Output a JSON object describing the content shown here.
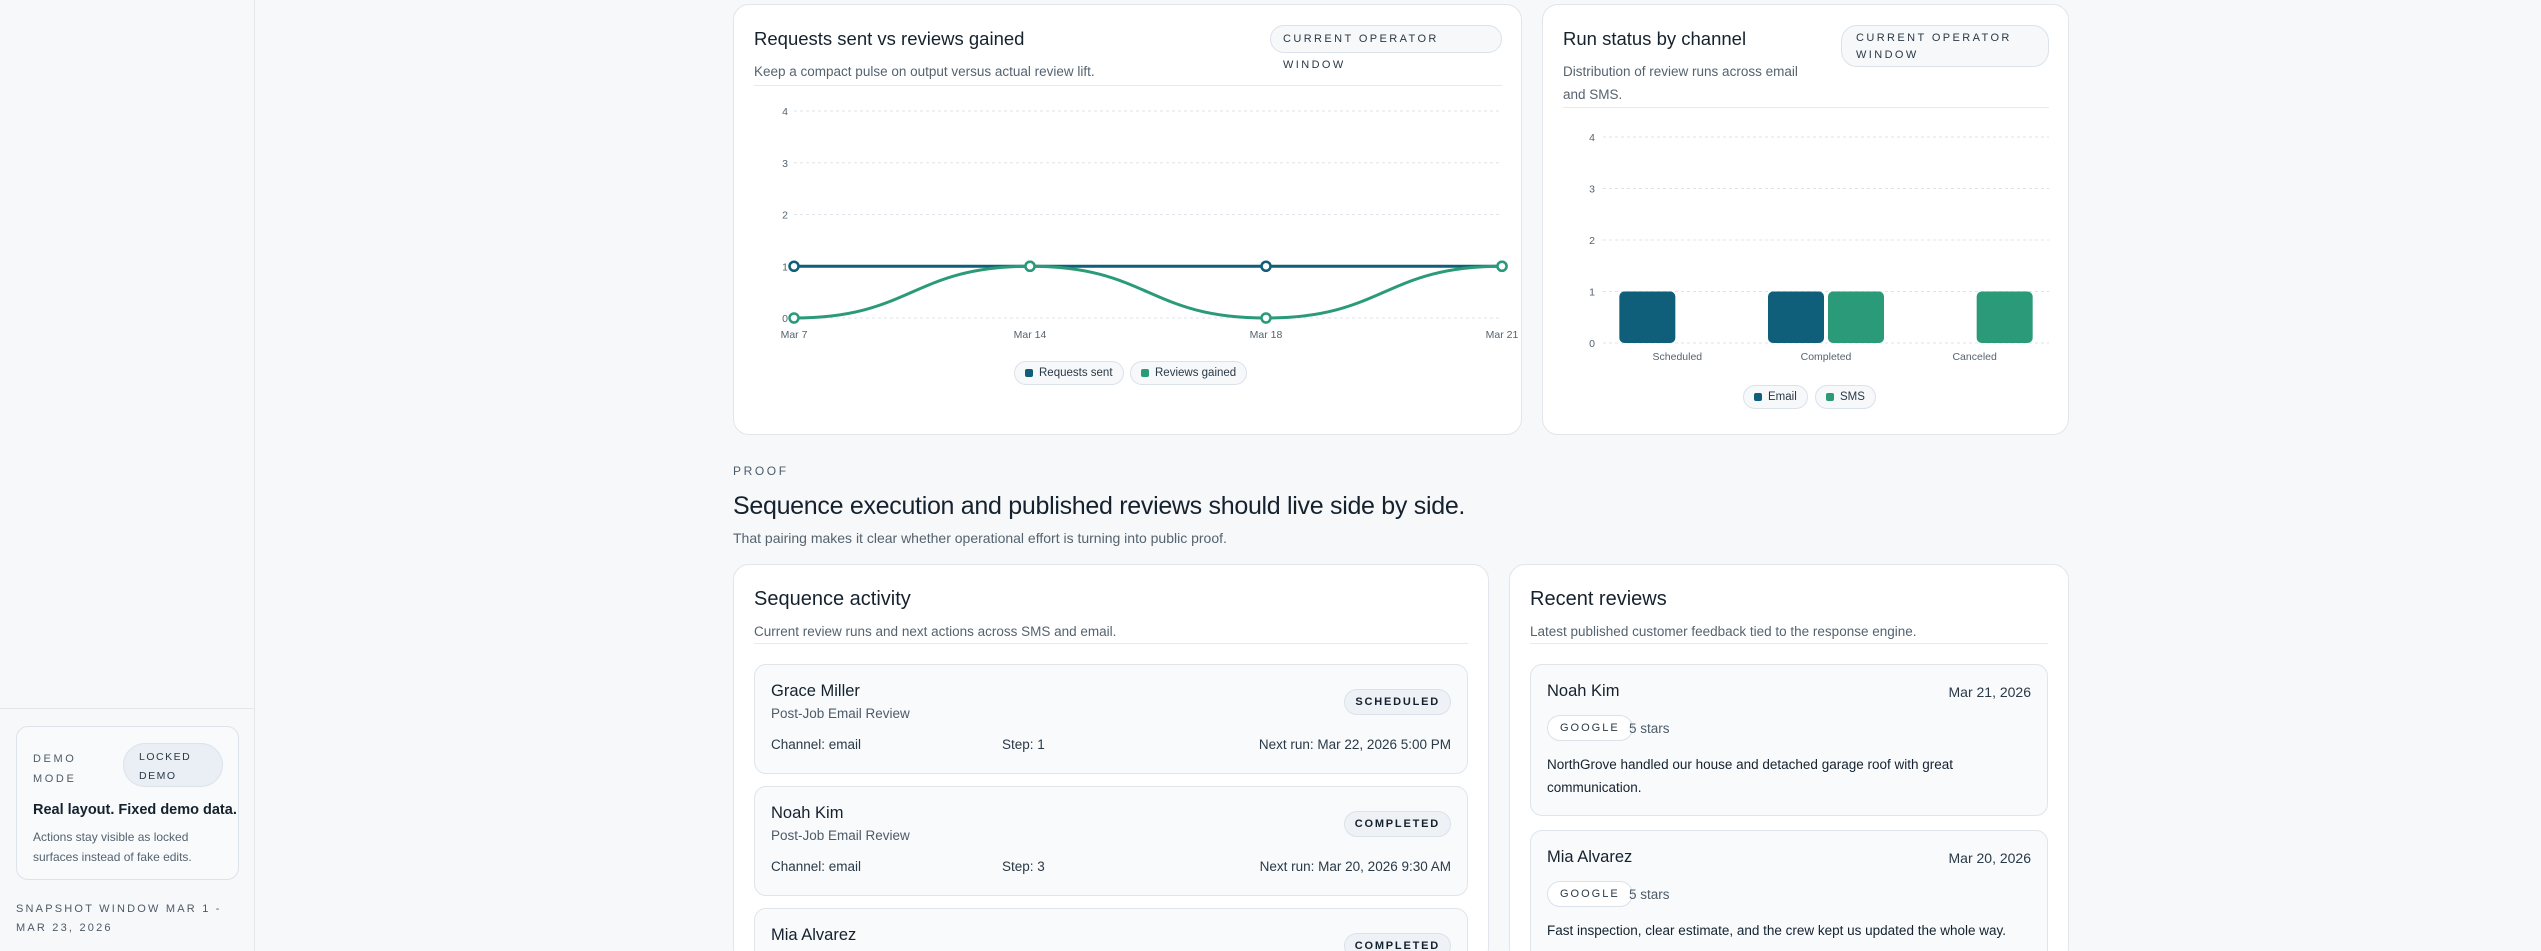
{
  "sidebar": {
    "demo_label": "DEMO MODE",
    "demo_badge": "LOCKED DEMO",
    "demo_title": "Real layout. Fixed demo data.",
    "demo_text": "Actions stay visible as locked surfaces instead of fake edits.",
    "snapshot": "SNAPSHOT WINDOW MAR 1 - MAR 23, 2026"
  },
  "line_card": {
    "title": "Requests sent vs reviews gained",
    "subtitle": "Keep a compact pulse on output versus actual review lift.",
    "pill": "CURRENT OPERATOR WINDOW"
  },
  "bar_card": {
    "title": "Run status by channel",
    "subtitle": "Distribution of review runs across email and SMS.",
    "pill": "CURRENT OPERATOR WINDOW"
  },
  "colors": {
    "primary": "#0f5f7a",
    "secondary": "#2a9a78"
  },
  "chart_data": [
    {
      "type": "line",
      "x": [
        "Mar 7",
        "Mar 14",
        "Mar 18",
        "Mar 21"
      ],
      "ylim": [
        0,
        4
      ],
      "yticks": [
        "0",
        "1",
        "2",
        "3",
        "4"
      ],
      "series": [
        {
          "name": "Requests sent",
          "values": [
            1,
            1,
            1,
            1
          ]
        },
        {
          "name": "Reviews gained",
          "values": [
            0,
            1,
            0,
            1
          ]
        }
      ]
    },
    {
      "type": "bar",
      "categories": [
        "Scheduled",
        "Completed",
        "Canceled"
      ],
      "ylim": [
        0,
        4
      ],
      "yticks": [
        "0",
        "1",
        "2",
        "3",
        "4"
      ],
      "series": [
        {
          "name": "Email",
          "values": [
            1,
            1,
            0
          ]
        },
        {
          "name": "SMS",
          "values": [
            0,
            1,
            1
          ]
        }
      ]
    }
  ],
  "proof": {
    "eyebrow": "PROOF",
    "title": "Sequence execution and published reviews should live side by side.",
    "subtitle": "That pairing makes it clear whether operational effort is turning into public proof."
  },
  "sequence": {
    "title": "Sequence activity",
    "subtitle": "Current review runs and next actions across SMS and email.",
    "items": [
      {
        "name": "Grace Miller",
        "sequence": "Post-Job Email Review",
        "status": "SCHEDULED",
        "channel": "Channel: email",
        "step": "Step: 1",
        "next": "Next run: Mar 22, 2026 5:00 PM"
      },
      {
        "name": "Noah Kim",
        "sequence": "Post-Job Email Review",
        "status": "COMPLETED",
        "channel": "Channel: email",
        "step": "Step: 3",
        "next": "Next run: Mar 20, 2026 9:30 AM"
      },
      {
        "name": "Mia Alvarez",
        "sequence": "",
        "status": "COMPLETED",
        "channel": "",
        "step": "",
        "next": ""
      }
    ]
  },
  "reviews": {
    "title": "Recent reviews",
    "subtitle": "Latest published customer feedback tied to the response engine.",
    "items": [
      {
        "name": "Noah Kim",
        "date": "Mar 21, 2026",
        "source": "GOOGLE",
        "stars": "5 stars",
        "text": "NorthGrove handled our house and detached garage roof with great communication."
      },
      {
        "name": "Mia Alvarez",
        "date": "Mar 20, 2026",
        "source": "GOOGLE",
        "stars": "5 stars",
        "text": "Fast inspection, clear estimate, and the crew kept us updated the whole way."
      }
    ]
  }
}
